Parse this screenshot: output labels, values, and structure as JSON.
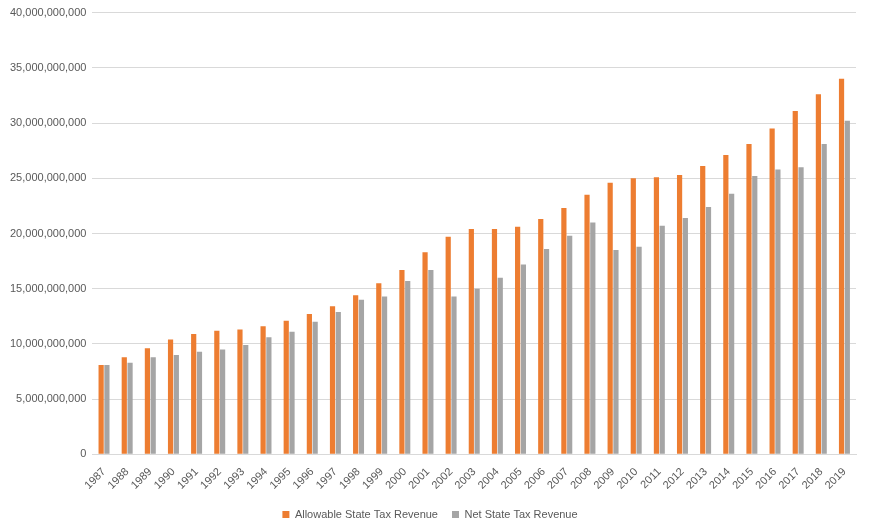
{
  "chart_data": {
    "type": "bar",
    "categories": [
      "1987",
      "1988",
      "1989",
      "1990",
      "1991",
      "1992",
      "1993",
      "1994",
      "1995",
      "1996",
      "1997",
      "1998",
      "1999",
      "2000",
      "2001",
      "2002",
      "2003",
      "2004",
      "2005",
      "2006",
      "2007",
      "2008",
      "2009",
      "2010",
      "2011",
      "2012",
      "2013",
      "2014",
      "2015",
      "2016",
      "2017",
      "2018",
      "2019"
    ],
    "series": [
      {
        "name": "Allowable State Tax Revenue",
        "color": "#ed7d31",
        "values": [
          8100000000,
          8800000000,
          9600000000,
          10400000000,
          10900000000,
          11200000000,
          11300000000,
          11600000000,
          12100000000,
          12700000000,
          13400000000,
          14400000000,
          15500000000,
          16700000000,
          18300000000,
          19700000000,
          20400000000,
          20400000000,
          20600000000,
          21300000000,
          22300000000,
          23500000000,
          24600000000,
          25000000000,
          25100000000,
          25300000000,
          26100000000,
          27100000000,
          28100000000,
          29500000000,
          31100000000,
          32600000000,
          34000000000
        ]
      },
      {
        "name": "Net State Tax Revenue",
        "color": "#a5a5a5",
        "values": [
          8100000000,
          8300000000,
          8800000000,
          9000000000,
          9300000000,
          9500000000,
          9900000000,
          10600000000,
          11100000000,
          12000000000,
          12900000000,
          14000000000,
          14300000000,
          15700000000,
          16700000000,
          14300000000,
          15000000000,
          16000000000,
          17200000000,
          18600000000,
          19800000000,
          21000000000,
          18500000000,
          18800000000,
          20700000000,
          21400000000,
          22400000000,
          23600000000,
          25200000000,
          25800000000,
          26000000000,
          28100000000,
          30200000000
        ]
      }
    ],
    "ylim": [
      0,
      40000000000
    ],
    "yticks": [
      0,
      {
        "value": 5000000000,
        "label": "5,000,000,000"
      },
      {
        "value": 10000000000,
        "label": "10,000,000,000"
      },
      {
        "value": 15000000000,
        "label": "15,000,000,000"
      },
      {
        "value": 20000000000,
        "label": "20,000,000,000"
      },
      {
        "value": 25000000000,
        "label": "25,000,000,000"
      },
      {
        "value": 30000000000,
        "label": "30,000,000,000"
      },
      {
        "value": 35000000000,
        "label": "35,000,000,000"
      },
      {
        "value": 40000000000,
        "label": "40,000,000,000"
      }
    ],
    "grid": true,
    "legend": "bottom"
  }
}
